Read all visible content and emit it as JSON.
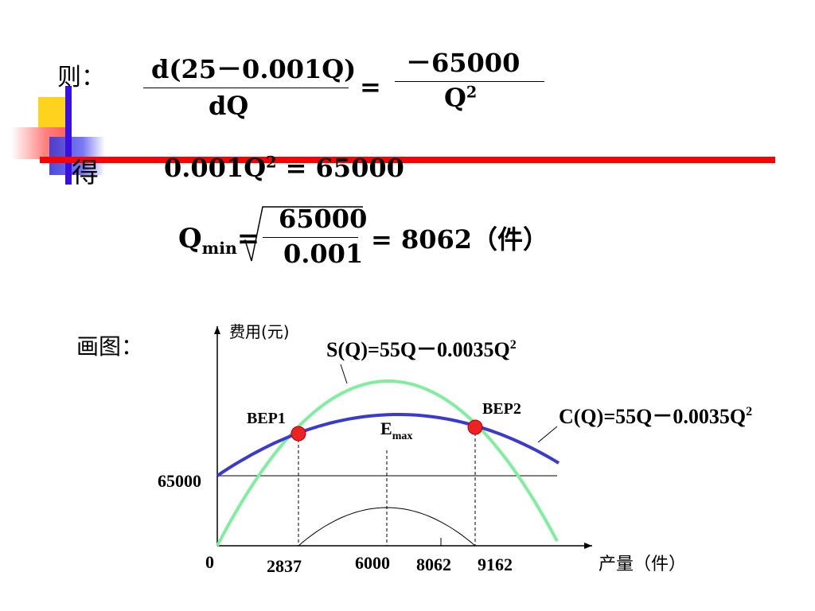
{
  "derivation": {
    "label_ze": "则：",
    "lhs_numerator": "d(25－0.001Q)",
    "lhs_denominator": "dQ",
    "equals": "=",
    "rhs_numerator": "－65000",
    "rhs_denominator_base": "Q",
    "rhs_denominator_exp": "2",
    "label_de": "得",
    "eq2_left": "0.001Q",
    "eq2_exp": "2",
    "eq2_right": " = 65000",
    "qmin_base": "Q",
    "qmin_sub": "min",
    "qmin_eq": "=",
    "sqrt_numerator": "65000",
    "sqrt_denominator": "0.001",
    "qmin_result": "= 8062（件）"
  },
  "graph_label": "画图：",
  "chart_data": {
    "type": "line",
    "ylabel": "费用(元)",
    "xlabel": "产量（件）",
    "origin_label": "0",
    "y_tick_label": "65000",
    "x_tick_labels": [
      "2837",
      "6000",
      "8062",
      "9162"
    ],
    "series": [
      {
        "name": "S(Q)=55Q－0.0035Q",
        "exp": "2",
        "color": "#7fef9f"
      },
      {
        "name": "C(Q)=55Q－0.0035Q",
        "exp": "2",
        "color": "#3a3ad0"
      }
    ],
    "points": [
      {
        "label": "BEP1",
        "x": 2837,
        "color": "#ee2222"
      },
      {
        "label": "BEP2",
        "x": 9162,
        "color": "#ee2222"
      }
    ],
    "emax_label": "E",
    "emax_sub": "max",
    "emax_x": 6000,
    "fixed_cost": 65000
  }
}
